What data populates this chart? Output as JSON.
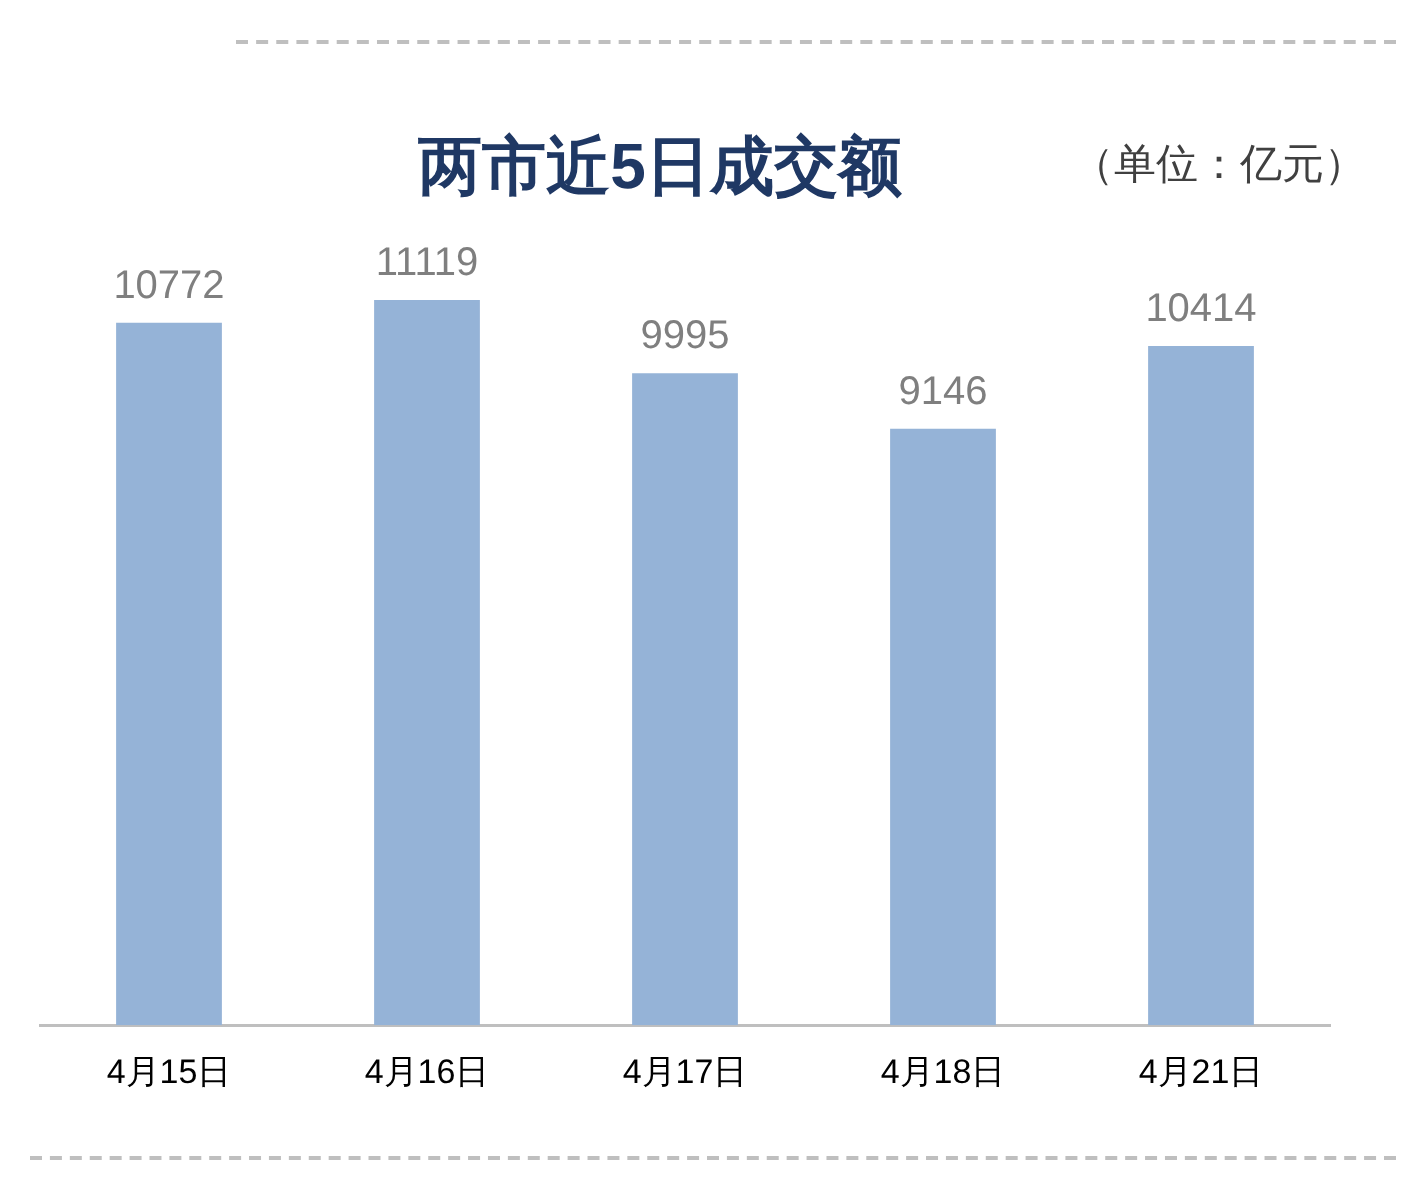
{
  "chart_data": {
    "type": "bar",
    "title": "两市近5日成交额",
    "annotations": [
      "（单位：亿元）"
    ],
    "categories": [
      "4月15日",
      "4月16日",
      "4月17日",
      "4月18日",
      "4月21日"
    ],
    "values": [
      10772,
      11119,
      9995,
      9146,
      10414
    ],
    "color": "#95b3d7",
    "data_labels": true,
    "grid": false,
    "legend": false
  }
}
